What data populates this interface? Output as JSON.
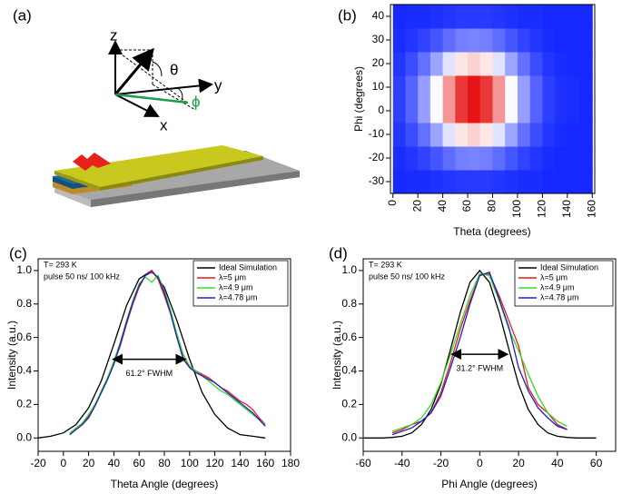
{
  "diagram": {
    "panel_label": "(a)",
    "axis_z": "z",
    "axis_y": "y",
    "axis_x": "x",
    "theta": "θ",
    "phi": "ϕ"
  },
  "chart_data": [
    {
      "type": "heatmap",
      "panel_label": "(b)",
      "x_label": "Theta (degrees)",
      "y_label": "Phi (degrees)",
      "x": [
        5,
        15,
        25,
        35,
        45,
        55,
        65,
        75,
        85,
        95,
        105,
        115,
        125,
        135,
        145,
        155
      ],
      "y": [
        -30,
        -20,
        -10,
        0,
        10,
        20,
        30,
        40
      ],
      "z": [
        [
          0,
          0.01,
          0.01,
          0.02,
          0.03,
          0.04,
          0.04,
          0.04,
          0.03,
          0.02,
          0.01,
          0.01,
          0,
          0,
          0,
          0
        ],
        [
          0.01,
          0.03,
          0.06,
          0.1,
          0.15,
          0.19,
          0.2,
          0.19,
          0.15,
          0.1,
          0.06,
          0.03,
          0.01,
          0,
          0,
          0
        ],
        [
          0.03,
          0.08,
          0.16,
          0.27,
          0.41,
          0.52,
          0.56,
          0.52,
          0.41,
          0.27,
          0.16,
          0.08,
          0.03,
          0.01,
          0,
          0
        ],
        [
          0.05,
          0.13,
          0.26,
          0.46,
          0.68,
          0.87,
          0.94,
          0.87,
          0.68,
          0.46,
          0.26,
          0.13,
          0.05,
          0.02,
          0.01,
          0
        ],
        [
          0.05,
          0.13,
          0.26,
          0.46,
          0.68,
          0.87,
          0.94,
          0.87,
          0.68,
          0.46,
          0.26,
          0.13,
          0.05,
          0.02,
          0.01,
          0
        ],
        [
          0.03,
          0.08,
          0.16,
          0.27,
          0.41,
          0.52,
          0.56,
          0.52,
          0.41,
          0.27,
          0.16,
          0.08,
          0.03,
          0.01,
          0,
          0
        ],
        [
          0.01,
          0.03,
          0.06,
          0.1,
          0.15,
          0.19,
          0.2,
          0.19,
          0.15,
          0.1,
          0.06,
          0.03,
          0.01,
          0,
          0,
          0
        ],
        [
          0,
          0.01,
          0.01,
          0.02,
          0.03,
          0.04,
          0.04,
          0.04,
          0.03,
          0.02,
          0.01,
          0.01,
          0,
          0,
          0,
          0
        ]
      ],
      "colormap": [
        "#1428ff",
        "#ffffff",
        "#e61414"
      ],
      "xlim": [
        -2,
        162
      ],
      "ylim": [
        -35,
        45
      ],
      "xticks": [
        0,
        20,
        40,
        60,
        80,
        100,
        120,
        140,
        160
      ],
      "yticks": [
        -30,
        -20,
        -10,
        0,
        10,
        20,
        30,
        40
      ]
    },
    {
      "type": "line",
      "panel_label": "(c)",
      "x_label": "Theta Angle (degrees)",
      "y_label": "Intensity (a.u.)",
      "annotations": [
        "T= 293 K",
        "pulse 50 ns/ 100 kHz",
        "61.2° FWHM"
      ],
      "xlim": [
        -20,
        180
      ],
      "ylim": [
        -0.08,
        1.07
      ],
      "xticks": [
        -20,
        0,
        20,
        40,
        60,
        80,
        100,
        120,
        140,
        160,
        180
      ],
      "yticks": [
        {
          "value": 0,
          "label": "0.0"
        },
        0.2,
        0.4,
        0.6,
        0.8,
        {
          "value": 1,
          "label": "1.0"
        }
      ],
      "legend": "upper right",
      "series": [
        {
          "name": "Ideal Simulation",
          "color": "#000000",
          "x": [
            -20,
            -10,
            0,
            10,
            20,
            30,
            40,
            50,
            60,
            70,
            80,
            90,
            100,
            110,
            120,
            130,
            140,
            150,
            160
          ],
          "values": [
            0,
            0.01,
            0.03,
            0.08,
            0.18,
            0.34,
            0.56,
            0.79,
            0.95,
            1.0,
            0.9,
            0.7,
            0.47,
            0.27,
            0.14,
            0.06,
            0.02,
            0.01,
            0
          ]
        },
        {
          "name": "λ=5 μm",
          "color": "#e41a1c",
          "x": [
            5,
            10,
            15,
            20,
            25,
            30,
            35,
            40,
            45,
            50,
            55,
            60,
            65,
            70,
            75,
            80,
            85,
            90,
            95,
            100,
            105,
            110,
            115,
            120,
            125,
            130,
            135,
            140,
            145,
            150,
            155,
            160
          ],
          "values": [
            0.02,
            0.05,
            0.08,
            0.13,
            0.2,
            0.27,
            0.35,
            0.45,
            0.55,
            0.68,
            0.8,
            0.9,
            0.97,
            1.0,
            0.95,
            0.85,
            0.74,
            0.6,
            0.48,
            0.42,
            0.4,
            0.38,
            0.36,
            0.33,
            0.3,
            0.28,
            0.25,
            0.22,
            0.2,
            0.17,
            0.12,
            0.08
          ]
        },
        {
          "name": "λ=4.9 μm",
          "color": "#33dd22",
          "x": [
            5,
            10,
            15,
            20,
            25,
            30,
            35,
            40,
            45,
            50,
            55,
            60,
            65,
            70,
            75,
            80,
            85,
            90,
            95,
            100,
            105,
            110,
            115,
            120,
            125,
            130,
            135,
            140,
            145,
            150,
            155,
            160
          ],
          "values": [
            0.03,
            0.06,
            0.09,
            0.14,
            0.2,
            0.28,
            0.36,
            0.46,
            0.57,
            0.7,
            0.82,
            0.92,
            0.96,
            0.93,
            0.97,
            0.88,
            0.76,
            0.62,
            0.5,
            0.43,
            0.4,
            0.37,
            0.34,
            0.31,
            0.28,
            0.26,
            0.23,
            0.2,
            0.17,
            0.14,
            0.11,
            0.08
          ]
        },
        {
          "name": "λ=4.78 μm",
          "color": "#1f1fcc",
          "x": [
            5,
            10,
            15,
            20,
            25,
            30,
            35,
            40,
            45,
            50,
            55,
            60,
            65,
            70,
            75,
            80,
            85,
            90,
            95,
            100,
            105,
            110,
            115,
            120,
            125,
            130,
            135,
            140,
            145,
            150,
            155,
            160
          ],
          "values": [
            0.02,
            0.05,
            0.08,
            0.12,
            0.19,
            0.27,
            0.35,
            0.44,
            0.56,
            0.69,
            0.81,
            0.91,
            0.97,
            0.99,
            0.96,
            0.87,
            0.74,
            0.6,
            0.47,
            0.42,
            0.39,
            0.37,
            0.35,
            0.33,
            0.3,
            0.27,
            0.24,
            0.21,
            0.18,
            0.15,
            0.11,
            0.07
          ]
        }
      ]
    },
    {
      "type": "line",
      "panel_label": "(d)",
      "x_label": "Phi Angle (degrees)",
      "y_label": "Intensity (a.u.)",
      "annotations": [
        "T= 293 K",
        "pulse 50 ns/ 100 kHz",
        "31.2° FWHM"
      ],
      "xlim": [
        -60,
        70
      ],
      "ylim": [
        -0.08,
        1.07
      ],
      "xticks": [
        -60,
        -40,
        -20,
        0,
        20,
        40,
        60
      ],
      "yticks": [
        {
          "value": 0,
          "label": "0.0"
        },
        0.2,
        0.4,
        0.6,
        0.8,
        {
          "value": 1,
          "label": "1.0"
        }
      ],
      "legend": "upper right",
      "series": [
        {
          "name": "Ideal Simulation",
          "color": "#000000",
          "x": [
            -60,
            -55,
            -50,
            -45,
            -40,
            -35,
            -30,
            -25,
            -20,
            -15,
            -10,
            -5,
            0,
            5,
            10,
            15,
            20,
            25,
            30,
            35,
            40,
            45,
            50,
            55,
            60
          ],
          "values": [
            0,
            0,
            0,
            0.003,
            0.01,
            0.03,
            0.08,
            0.17,
            0.32,
            0.53,
            0.75,
            0.93,
            1.0,
            0.93,
            0.75,
            0.53,
            0.32,
            0.17,
            0.08,
            0.03,
            0.01,
            0.003,
            0,
            0,
            0
          ]
        },
        {
          "name": "λ=5 μm",
          "color": "#e41a1c",
          "x": [
            -45,
            -40,
            -35,
            -30,
            -25,
            -20,
            -15,
            -10,
            -5,
            0,
            5,
            10,
            15,
            20,
            25,
            30,
            35,
            40,
            45
          ],
          "values": [
            0.03,
            0.05,
            0.08,
            0.1,
            0.15,
            0.27,
            0.45,
            0.65,
            0.82,
            0.97,
            0.98,
            0.85,
            0.7,
            0.55,
            0.3,
            0.2,
            0.15,
            0.08,
            0.05
          ]
        },
        {
          "name": "λ=4.9 μm",
          "color": "#33dd22",
          "x": [
            -45,
            -40,
            -35,
            -30,
            -25,
            -20,
            -15,
            -10,
            -5,
            0,
            5,
            10,
            15,
            20,
            25,
            30,
            35,
            40,
            45
          ],
          "values": [
            0.04,
            0.06,
            0.08,
            0.12,
            0.2,
            0.33,
            0.5,
            0.68,
            0.85,
            0.98,
            0.97,
            0.82,
            0.65,
            0.52,
            0.38,
            0.25,
            0.15,
            0.1,
            0.07
          ]
        },
        {
          "name": "λ=4.78 μm",
          "color": "#1f1fcc",
          "x": [
            -45,
            -40,
            -35,
            -30,
            -25,
            -20,
            -15,
            -10,
            -5,
            0,
            5,
            10,
            15,
            20,
            25,
            30,
            35,
            40,
            45
          ],
          "values": [
            0.02,
            0.04,
            0.06,
            0.1,
            0.15,
            0.25,
            0.42,
            0.6,
            0.8,
            0.97,
            0.99,
            0.83,
            0.66,
            0.42,
            0.28,
            0.18,
            0.12,
            0.07,
            0.05
          ]
        }
      ]
    }
  ]
}
